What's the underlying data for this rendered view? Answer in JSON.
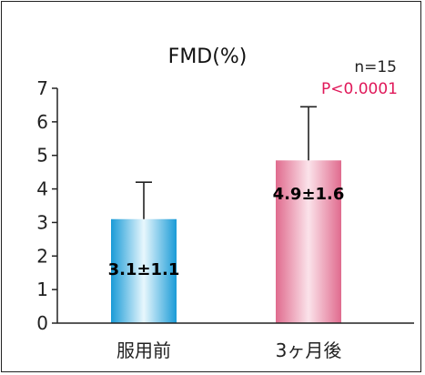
{
  "chart_data": {
    "type": "bar",
    "title": "FMD(%)",
    "annotations": {
      "n": "n=15",
      "p": "P<0.0001"
    },
    "categories": [
      "服用前",
      "3ヶ月後"
    ],
    "values": [
      3.1,
      4.85
    ],
    "error_plus": [
      1.1,
      1.6
    ],
    "bar_labels": [
      "3.1±1.1",
      "4.9±1.6"
    ],
    "ylim": [
      0,
      7
    ],
    "yticks": [
      "0",
      "1",
      "2",
      "3",
      "4",
      "5",
      "6",
      "7"
    ],
    "grid": false,
    "colors": {
      "bar_1_edge": "#1a9bd7",
      "bar_1_center": "#e8f7fd",
      "bar_2_edge": "#e06b8e",
      "bar_2_center": "#fbe3ea",
      "axis": "#222222",
      "p_value": "#e0195a"
    }
  }
}
